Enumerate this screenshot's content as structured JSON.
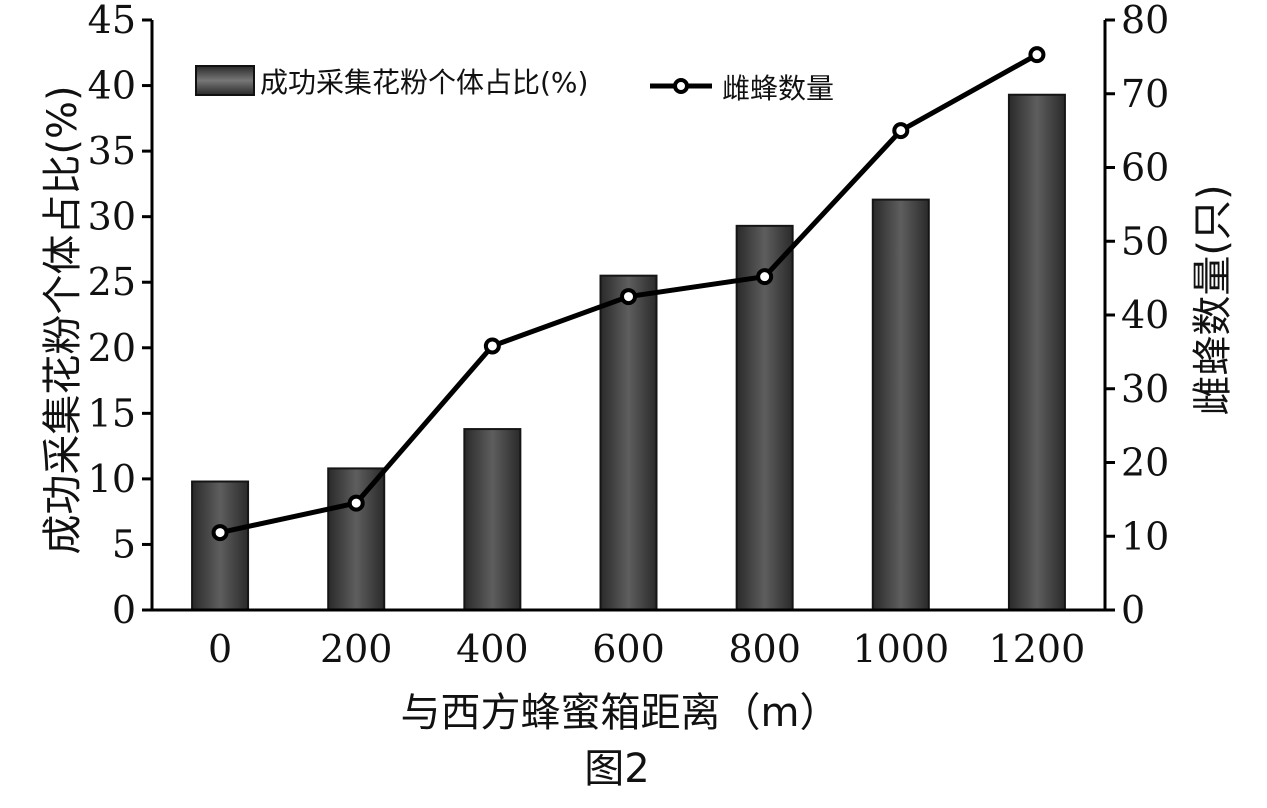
{
  "chart_data": {
    "type": "bar",
    "categories": [
      "0",
      "200",
      "400",
      "600",
      "800",
      "1000",
      "1200"
    ],
    "series": [
      {
        "name": "成功采集花粉个体占比(%)",
        "type": "bar",
        "axis": "left",
        "values": [
          9.8,
          10.8,
          13.8,
          25.5,
          29.3,
          31.3,
          39.3
        ]
      },
      {
        "name": "雌蜂数量",
        "type": "line",
        "axis": "right",
        "values": [
          10.5,
          14.5,
          35.8,
          42.5,
          45.2,
          65.0,
          75.3
        ]
      }
    ],
    "xlabel": "与西方蜂蜜箱距离（m）",
    "ylabel_left": "成功采集花粉个体占比(%)",
    "ylabel_right": "雌蜂数量(只)",
    "ylim_left": [
      0,
      45
    ],
    "ylim_right": [
      0,
      80
    ],
    "yticks_left": [
      "0",
      "5",
      "10",
      "15",
      "20",
      "25",
      "30",
      "35",
      "40",
      "45"
    ],
    "yticks_right": [
      "0",
      "10",
      "20",
      "30",
      "40",
      "50",
      "60",
      "70",
      "80"
    ],
    "legend": "top-left",
    "grid": false,
    "caption": "图2",
    "colors": {
      "bar_dark": "#1c1c1c",
      "bar_light": "#6a6a6a",
      "line": "#000000",
      "marker_fill": "#ffffff"
    }
  }
}
